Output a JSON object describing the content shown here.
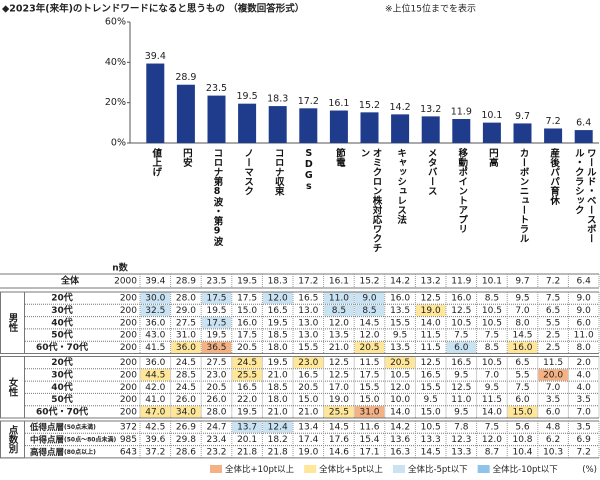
{
  "chart_data": {
    "type": "bar",
    "title": "◆2023年(来年)のトレンドワードになると思うもの （複数回答形式）",
    "note": "※上位15位までを表示",
    "categories": [
      "値上げ",
      "円安",
      "コロナ第8波・第9波",
      "ノーマスク",
      "コロナ収束",
      "SDGs",
      "節電",
      "オミクロン株対応ワクチン",
      "キャッシュレス法",
      "メタバース",
      "移動ポイントアプリ",
      "円高",
      "カーボンニュートラル",
      "産後パパ育休",
      "ワールド・ベースボール・クラシック"
    ],
    "values": [
      39.4,
      28.9,
      23.5,
      19.5,
      18.3,
      17.2,
      16.1,
      15.2,
      14.2,
      13.2,
      11.9,
      10.1,
      9.7,
      7.2,
      6.4
    ],
    "color": "#1f3b8c",
    "ylim": [
      0,
      60
    ],
    "yticks": [
      {
        "value": 0,
        "label": "0%"
      },
      {
        "value": 20,
        "label": "20%"
      },
      {
        "value": 40,
        "label": "40%"
      },
      {
        "value": 60,
        "label": "60%"
      }
    ]
  },
  "table": {
    "n_header": "n数",
    "total": {
      "label": "全体",
      "n": "2000",
      "values": [
        "39.4",
        "28.9",
        "23.5",
        "19.5",
        "18.3",
        "17.2",
        "16.1",
        "15.2",
        "14.2",
        "13.2",
        "11.9",
        "10.1",
        "9.7",
        "7.2",
        "6.4"
      ]
    },
    "groups": [
      {
        "label": "男性",
        "rows": [
          {
            "label": "20代",
            "n": "200",
            "values": [
              "30.0",
              "28.0",
              "17.5",
              "17.5",
              "12.0",
              "16.5",
              "11.0",
              "9.0",
              "16.0",
              "12.5",
              "16.0",
              "8.5",
              "9.5",
              "7.5",
              "9.0"
            ]
          },
          {
            "label": "30代",
            "n": "200",
            "values": [
              "32.5",
              "29.0",
              "19.5",
              "15.0",
              "16.5",
              "13.0",
              "8.5",
              "8.5",
              "13.5",
              "19.0",
              "12.5",
              "10.5",
              "7.0",
              "6.5",
              "9.0"
            ]
          },
          {
            "label": "40代",
            "n": "200",
            "values": [
              "36.0",
              "27.5",
              "17.5",
              "16.0",
              "19.5",
              "13.0",
              "12.0",
              "14.5",
              "15.5",
              "14.0",
              "10.5",
              "10.5",
              "8.0",
              "5.5",
              "6.0"
            ]
          },
          {
            "label": "50代",
            "n": "200",
            "values": [
              "43.0",
              "31.0",
              "19.5",
              "17.5",
              "18.5",
              "13.0",
              "13.5",
              "12.0",
              "9.5",
              "11.5",
              "7.5",
              "7.5",
              "14.5",
              "2.5",
              "11.0"
            ]
          },
          {
            "label": "60代・70代",
            "n": "200",
            "values": [
              "41.5",
              "36.0",
              "36.5",
              "20.5",
              "18.0",
              "15.5",
              "21.0",
              "20.5",
              "13.5",
              "11.5",
              "6.0",
              "8.5",
              "16.0",
              "2.5",
              "8.0"
            ]
          }
        ]
      },
      {
        "label": "女性",
        "rows": [
          {
            "label": "20代",
            "n": "200",
            "values": [
              "36.0",
              "24.5",
              "27.5",
              "24.5",
              "19.5",
              "23.0",
              "12.5",
              "11.5",
              "20.5",
              "12.5",
              "16.5",
              "10.5",
              "6.5",
              "11.5",
              "2.0"
            ]
          },
          {
            "label": "30代",
            "n": "200",
            "values": [
              "44.5",
              "28.5",
              "23.0",
              "25.5",
              "21.0",
              "16.5",
              "12.5",
              "17.5",
              "10.5",
              "16.5",
              "9.5",
              "7.0",
              "5.5",
              "20.0",
              "4.0"
            ]
          },
          {
            "label": "40代",
            "n": "200",
            "values": [
              "42.0",
              "24.5",
              "20.5",
              "16.5",
              "18.5",
              "20.5",
              "17.0",
              "15.5",
              "12.0",
              "15.5",
              "12.5",
              "9.5",
              "7.5",
              "7.0",
              "4.0"
            ]
          },
          {
            "label": "50代",
            "n": "200",
            "values": [
              "41.0",
              "26.0",
              "26.0",
              "22.0",
              "18.0",
              "15.0",
              "19.0",
              "15.0",
              "10.0",
              "9.5",
              "11.0",
              "11.5",
              "6.0",
              "3.5",
              "3.5"
            ]
          },
          {
            "label": "60代・70代",
            "n": "200",
            "values": [
              "47.0",
              "34.0",
              "28.0",
              "19.5",
              "21.0",
              "21.0",
              "25.5",
              "31.0",
              "14.0",
              "15.0",
              "9.5",
              "14.0",
              "15.0",
              "6.0",
              "7.0"
            ]
          }
        ]
      },
      {
        "label": "点数別",
        "rows": [
          {
            "label": "低得点層",
            "sublabel": "(50点未満)",
            "n": "372",
            "values": [
              "42.5",
              "26.9",
              "24.7",
              "13.7",
              "12.4",
              "13.4",
              "14.5",
              "11.6",
              "14.2",
              "10.5",
              "7.8",
              "7.5",
              "5.6",
              "4.8",
              "3.5"
            ]
          },
          {
            "label": "中得点層",
            "sublabel": "(50点～80点未満)",
            "n": "985",
            "values": [
              "39.6",
              "29.8",
              "23.4",
              "20.1",
              "18.2",
              "17.4",
              "17.6",
              "15.4",
              "13.6",
              "13.3",
              "12.3",
              "12.0",
              "10.8",
              "6.2",
              "6.9"
            ]
          },
          {
            "label": "高得点層",
            "sublabel": "(80点以上)",
            "n": "643",
            "values": [
              "37.2",
              "28.6",
              "23.2",
              "21.8",
              "21.8",
              "19.0",
              "14.6",
              "17.1",
              "16.3",
              "14.5",
              "13.3",
              "8.7",
              "10.4",
              "10.3",
              "7.2"
            ]
          }
        ]
      }
    ],
    "legend": [
      {
        "label": "全体比+10pt以上",
        "color": "#f4b183",
        "threshold": 10
      },
      {
        "label": "全体比+5pt以上",
        "color": "#ffe699",
        "threshold": 5
      },
      {
        "label": "全体比-5pt以下",
        "color": "#c9e3f3",
        "threshold": -5
      },
      {
        "label": "全体比-10pt以下",
        "color": "#8fc3e8",
        "threshold": -10
      }
    ],
    "unit": "(%)"
  }
}
